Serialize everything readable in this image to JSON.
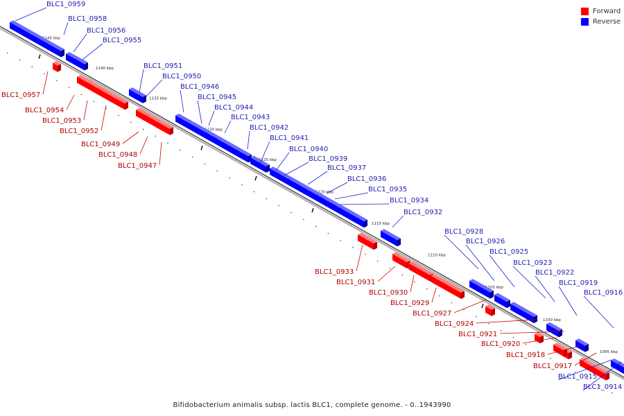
{
  "colors": {
    "forward": "#ff0000",
    "reverse": "#0000ff",
    "axis": "#888888"
  },
  "legend": {
    "forward": "Forward",
    "reverse": "Reverse"
  },
  "caption": "Bifidobacterium animalis subsp. lactis BLC1, complete genome. - 0..1943990",
  "ticks": [
    "1145 kbp",
    "1140 kbp",
    "1135 kbp",
    "1130 kbp",
    "1125 kbp",
    "1120 kbp",
    "1115 kbp",
    "1110 kbp",
    "1105 kbp",
    "1100 kbp",
    "1095 kbp"
  ],
  "genes": [
    {
      "id": "BLC1_0959",
      "strand": "reverse"
    },
    {
      "id": "BLC1_0958",
      "strand": "reverse"
    },
    {
      "id": "BLC1_0956",
      "strand": "reverse"
    },
    {
      "id": "BLC1_0955",
      "strand": "reverse"
    },
    {
      "id": "BLC1_0957",
      "strand": "forward"
    },
    {
      "id": "BLC1_0954",
      "strand": "forward"
    },
    {
      "id": "BLC1_0953",
      "strand": "forward"
    },
    {
      "id": "BLC1_0952",
      "strand": "forward"
    },
    {
      "id": "BLC1_0951",
      "strand": "reverse"
    },
    {
      "id": "BLC1_0950",
      "strand": "reverse"
    },
    {
      "id": "BLC1_0946",
      "strand": "reverse"
    },
    {
      "id": "BLC1_0945",
      "strand": "reverse"
    },
    {
      "id": "BLC1_0944",
      "strand": "reverse"
    },
    {
      "id": "BLC1_0943",
      "strand": "reverse"
    },
    {
      "id": "BLC1_0942",
      "strand": "reverse"
    },
    {
      "id": "BLC1_0941",
      "strand": "reverse"
    },
    {
      "id": "BLC1_0940",
      "strand": "reverse"
    },
    {
      "id": "BLC1_0939",
      "strand": "reverse"
    },
    {
      "id": "BLC1_0937",
      "strand": "reverse"
    },
    {
      "id": "BLC1_0936",
      "strand": "reverse"
    },
    {
      "id": "BLC1_0935",
      "strand": "reverse"
    },
    {
      "id": "BLC1_0934",
      "strand": "reverse"
    },
    {
      "id": "BLC1_0932",
      "strand": "reverse"
    },
    {
      "id": "BLC1_0949",
      "strand": "forward"
    },
    {
      "id": "BLC1_0948",
      "strand": "forward"
    },
    {
      "id": "BLC1_0947",
      "strand": "forward"
    },
    {
      "id": "BLC1_0933",
      "strand": "forward"
    },
    {
      "id": "BLC1_0931",
      "strand": "forward"
    },
    {
      "id": "BLC1_0930",
      "strand": "forward"
    },
    {
      "id": "BLC1_0929",
      "strand": "forward"
    },
    {
      "id": "BLC1_0927",
      "strand": "forward"
    },
    {
      "id": "BLC1_0924",
      "strand": "forward"
    },
    {
      "id": "BLC1_0921",
      "strand": "forward"
    },
    {
      "id": "BLC1_0920",
      "strand": "forward"
    },
    {
      "id": "BLC1_0918",
      "strand": "forward"
    },
    {
      "id": "BLC1_0917",
      "strand": "forward"
    },
    {
      "id": "BLC1_0928",
      "strand": "reverse"
    },
    {
      "id": "BLC1_0926",
      "strand": "reverse"
    },
    {
      "id": "BLC1_0925",
      "strand": "reverse"
    },
    {
      "id": "BLC1_0923",
      "strand": "reverse"
    },
    {
      "id": "BLC1_0922",
      "strand": "reverse"
    },
    {
      "id": "BLC1_0919",
      "strand": "reverse"
    },
    {
      "id": "BLC1_0916",
      "strand": "reverse"
    },
    {
      "id": "BLC1_0915",
      "strand": "reverse"
    },
    {
      "id": "BLC1_0914",
      "strand": "reverse"
    }
  ]
}
